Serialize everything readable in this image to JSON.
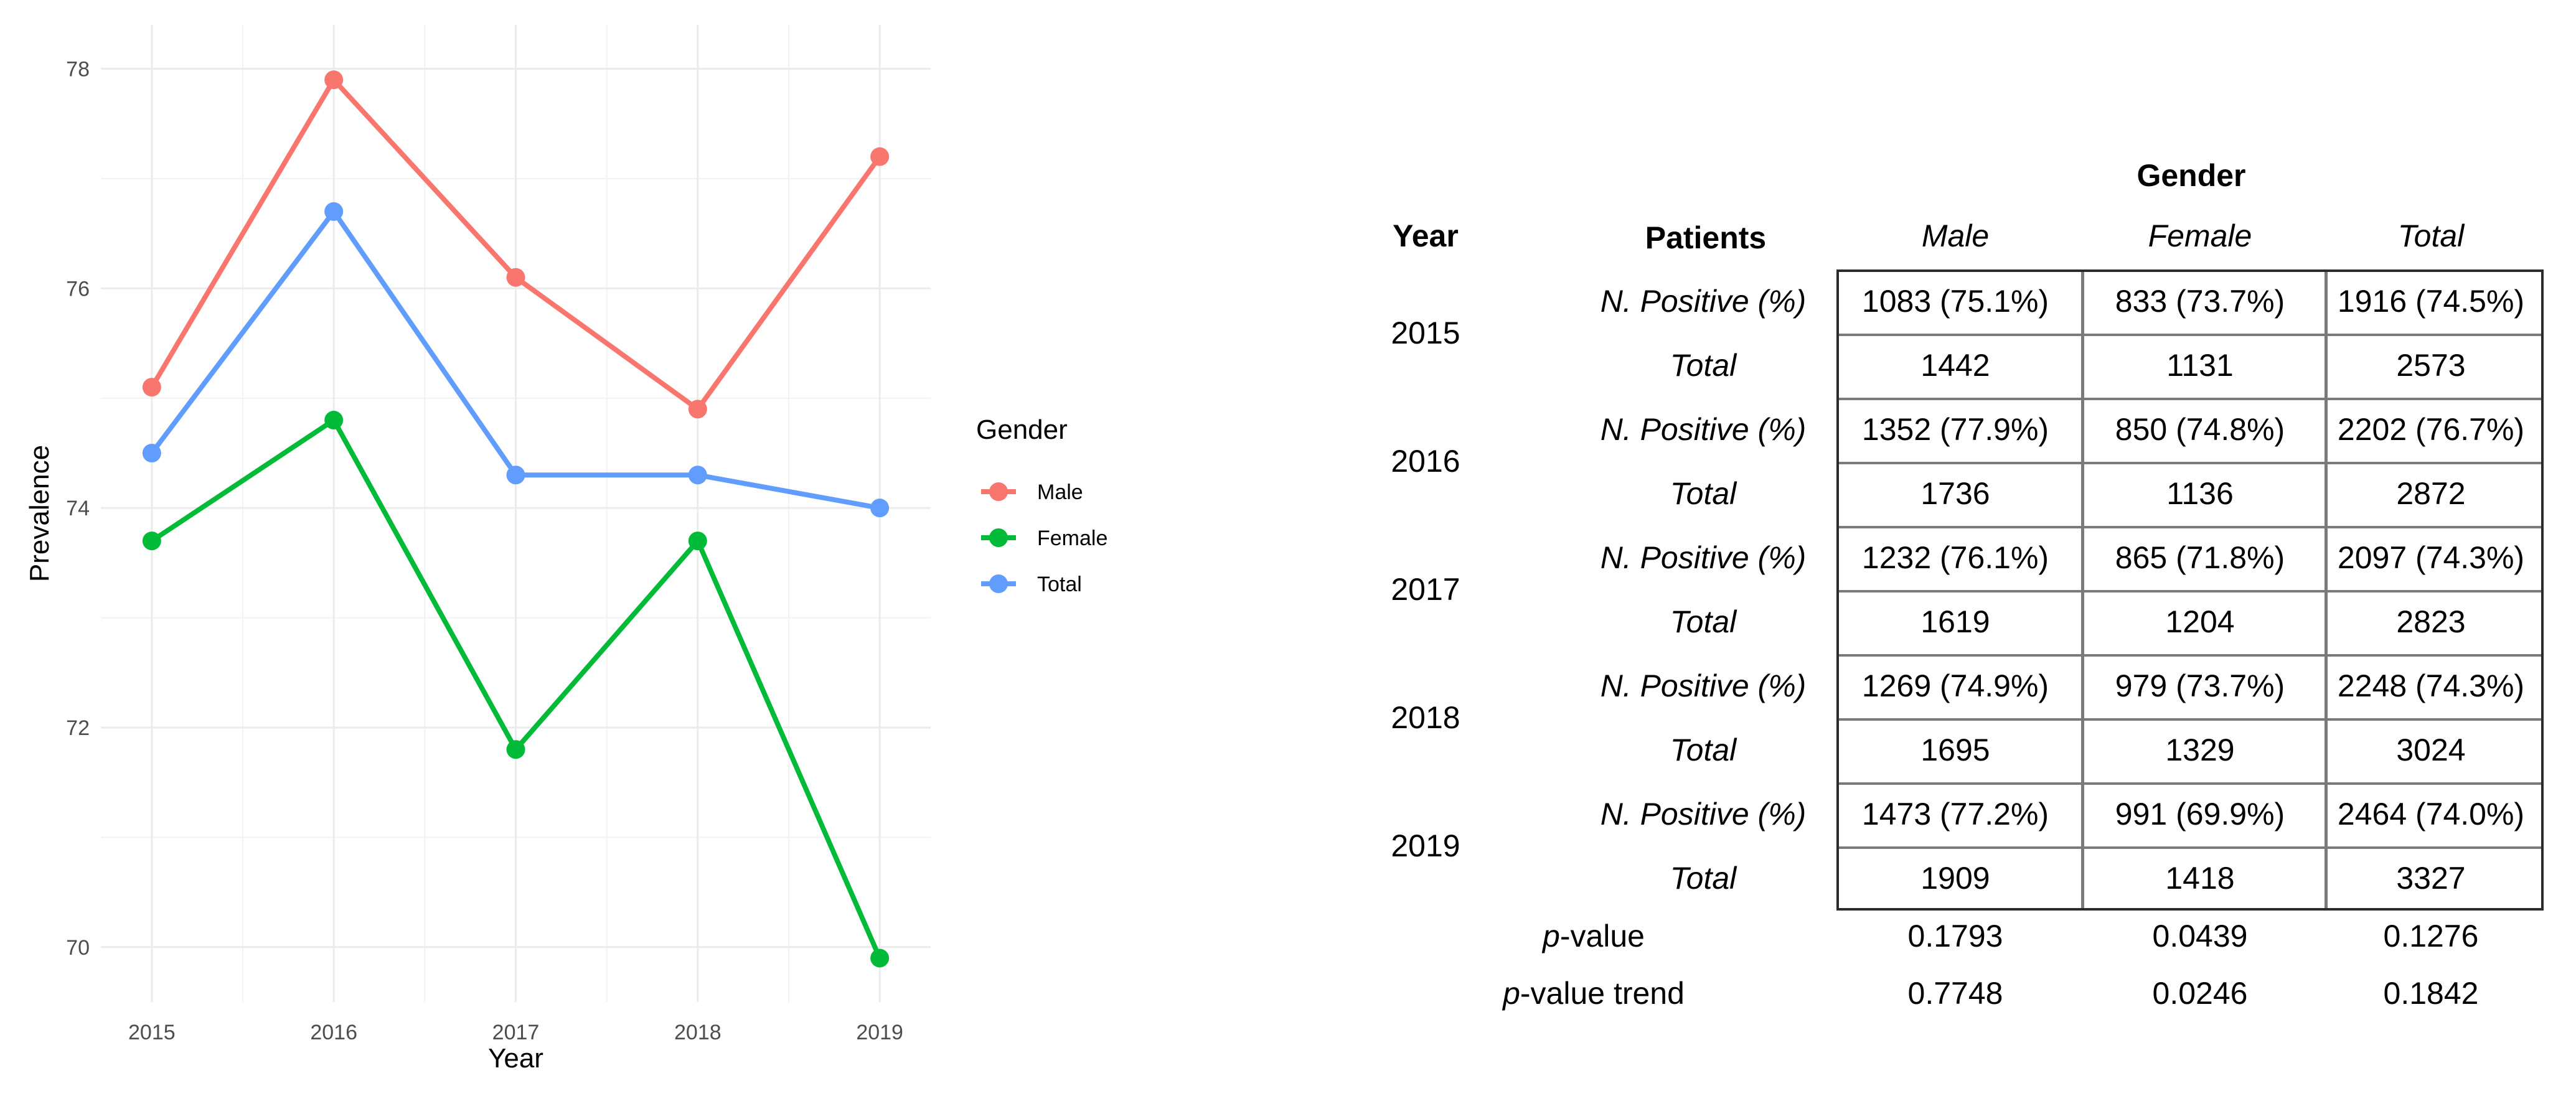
{
  "chart_data": {
    "type": "line",
    "x": [
      2015,
      2016,
      2017,
      2018,
      2019
    ],
    "xlabel": "Year",
    "ylabel": "Prevalence",
    "ylim": [
      69.5,
      78.4
    ],
    "yticks": [
      70,
      72,
      74,
      76,
      78
    ],
    "grid": true,
    "legend": {
      "title": "Gender",
      "position": "right"
    },
    "series": [
      {
        "name": "Male",
        "color": "#F8766D",
        "values": [
          75.1,
          77.9,
          76.1,
          74.9,
          77.2
        ]
      },
      {
        "name": "Female",
        "color": "#00BA38",
        "values": [
          73.7,
          74.8,
          71.8,
          73.7,
          69.9
        ]
      },
      {
        "name": "Total",
        "color": "#619CFF",
        "values": [
          74.5,
          76.7,
          74.3,
          74.3,
          74.0
        ]
      }
    ]
  },
  "table": {
    "gender_header": "Gender",
    "year_header": "Year",
    "patients_header": "Patients",
    "col_headers": [
      "Male",
      "Female",
      "Total"
    ],
    "rows": [
      {
        "year": "2015",
        "positive_label": "N. Positive (%)",
        "positive": [
          "1083 (75.1%)",
          "833 (73.7%)",
          "1916 (74.5%)"
        ],
        "total_label": "Total",
        "total": [
          "1442",
          "1131",
          "2573"
        ]
      },
      {
        "year": "2016",
        "positive_label": "N. Positive (%)",
        "positive": [
          "1352 (77.9%)",
          "850 (74.8%)",
          "2202 (76.7%)"
        ],
        "total_label": "Total",
        "total": [
          "1736",
          "1136",
          "2872"
        ]
      },
      {
        "year": "2017",
        "positive_label": "N. Positive (%)",
        "positive": [
          "1232 (76.1%)",
          "865 (71.8%)",
          "2097 (74.3%)"
        ],
        "total_label": "Total",
        "total": [
          "1619",
          "1204",
          "2823"
        ]
      },
      {
        "year": "2018",
        "positive_label": "N. Positive (%)",
        "positive": [
          "1269 (74.9%)",
          "979 (73.7%)",
          "2248 (74.3%)"
        ],
        "total_label": "Total",
        "total": [
          "1695",
          "1329",
          "3024"
        ]
      },
      {
        "year": "2019",
        "positive_label": "N. Positive (%)",
        "positive": [
          "1473 (77.2%)",
          "991 (69.9%)",
          "2464 (74.0%)"
        ],
        "total_label": "Total",
        "total": [
          "1909",
          "1418",
          "3327"
        ]
      }
    ],
    "pvalue": {
      "label_prefix": "p",
      "label_suffix": "-value",
      "values": [
        "0.1793",
        "0.0439",
        "0.1276"
      ]
    },
    "pvalue_trend": {
      "label_prefix": "p",
      "label_suffix": "-value trend",
      "values": [
        "0.7748",
        "0.0246",
        "0.1842"
      ]
    }
  }
}
